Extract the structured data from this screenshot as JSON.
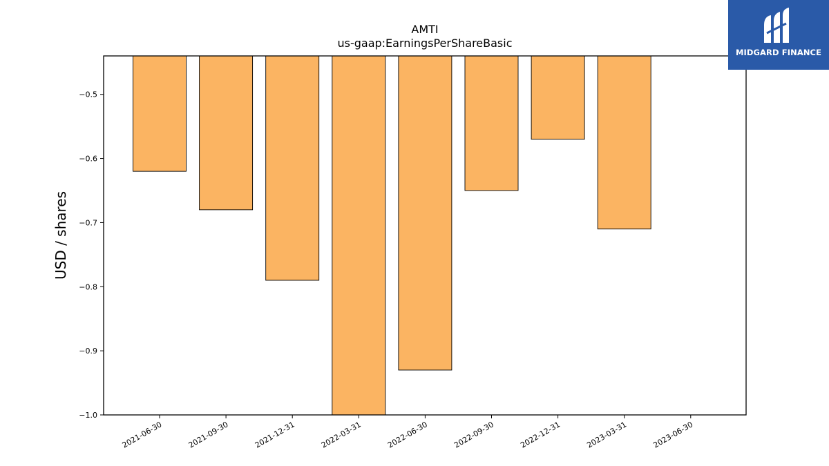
{
  "chart_data": {
    "type": "bar",
    "title": "AMTI",
    "subtitle": "us-gaap:EarningsPerShareBasic",
    "xlabel": "",
    "ylabel": "USD / shares",
    "categories": [
      "2021-06-30",
      "2021-09-30",
      "2021-12-31",
      "2022-03-31",
      "2022-06-30",
      "2022-09-30",
      "2022-12-31",
      "2023-03-31",
      "2023-06-30"
    ],
    "values": [
      -0.62,
      -0.68,
      -0.79,
      -1.0,
      -0.93,
      -0.65,
      -0.57,
      -0.71,
      null
    ],
    "ylim": [
      -1.0,
      -0.44
    ],
    "yticks": [
      -0.5,
      -0.6,
      -0.7,
      -0.8,
      -0.9,
      -1.0
    ],
    "ytick_labels": [
      "−0.5",
      "−0.6",
      "−0.7",
      "−0.8",
      "−0.9",
      "−1.0"
    ],
    "bar_color": "#fbb462",
    "bar_edge_color": "#000000",
    "grid": false,
    "legend": "none"
  },
  "logo": {
    "text": "MIDGARD FINANCE",
    "background": "#2a5aa8"
  }
}
